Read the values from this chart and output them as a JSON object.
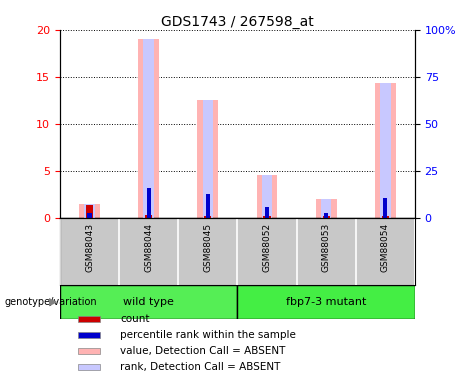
{
  "title": "GDS1743 / 267598_at",
  "samples": [
    "GSM88043",
    "GSM88044",
    "GSM88045",
    "GSM88052",
    "GSM88053",
    "GSM88054"
  ],
  "value_absent": [
    1.4,
    19.0,
    12.5,
    4.5,
    2.0,
    14.3
  ],
  "rank_absent_pct": [
    7,
    95,
    62.5,
    22.5,
    10,
    71.5
  ],
  "count_red": [
    1.3,
    0.3,
    0.2,
    0.2,
    0.15,
    0.2
  ],
  "rank_blue": [
    0.5,
    3.1,
    2.5,
    1.1,
    0.5,
    2.1
  ],
  "ylim_left": [
    0,
    20
  ],
  "ylim_right": [
    0,
    100
  ],
  "yticks_left": [
    0,
    5,
    10,
    15,
    20
  ],
  "yticks_right": [
    0,
    25,
    50,
    75,
    100
  ],
  "color_value_absent": "#FFB3B3",
  "color_rank_absent": "#C8C8FF",
  "color_count": "#CC0000",
  "color_rank": "#0000CC",
  "color_wildtype": "#55EE55",
  "color_mutant": "#44EE44",
  "color_label_bg": "#C8C8C8",
  "wildtype_indices": [
    0,
    1,
    2
  ],
  "mutant_indices": [
    3,
    4,
    5
  ],
  "wildtype_label": "wild type",
  "mutant_label": "fbp7-3 mutant",
  "genotype_label": "genotype/variation",
  "title_fontsize": 10,
  "tick_fontsize": 8,
  "label_fontsize": 8,
  "legend_fontsize": 7.5
}
